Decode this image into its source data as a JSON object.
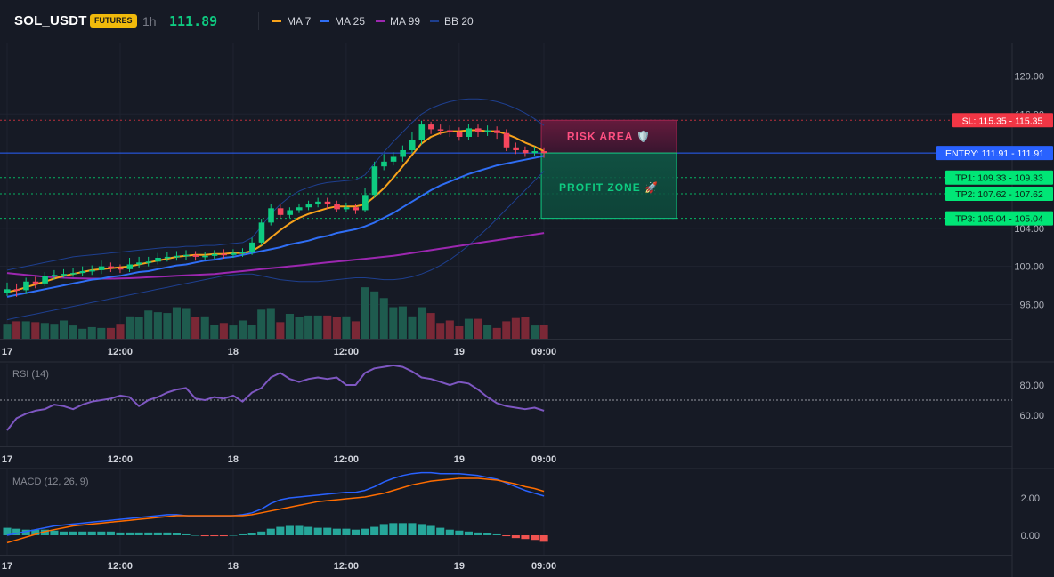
{
  "header": {
    "symbol": "SOL_USDT",
    "badge": "FUTURES",
    "interval": "1h",
    "last_price": "111.89"
  },
  "indicators": [
    {
      "label": "MA 7",
      "color": "#f7a21b"
    },
    {
      "label": "MA 25",
      "color": "#2f6ef5"
    },
    {
      "label": "MA 99",
      "color": "#9c27b0"
    },
    {
      "label": "BB 20",
      "color": "#1e3f8f"
    }
  ],
  "panes": {
    "rsi_label": "RSI (14)",
    "macd_label": "MACD (12, 26, 9)"
  },
  "colors": {
    "up": "#0ecb81",
    "down": "#f6465d",
    "entry": "#2962ff",
    "sl": "#f23645",
    "tp": "#00e676",
    "risk_fill": "#6e1b3f",
    "profit_fill": "#0c4a3b"
  },
  "time_axis": {
    "labels": [
      "17",
      "12:00",
      "18",
      "12:00",
      "19",
      "09:00"
    ],
    "positions_hours": [
      0,
      12,
      24,
      36,
      48,
      57
    ]
  },
  "price_axis": {
    "ticks": [
      "120.00",
      "116.00",
      "104.00",
      "100.00",
      "96.00"
    ],
    "values": [
      120,
      116,
      104,
      100,
      96
    ]
  },
  "rsi_axis": {
    "ticks": [
      "80.00",
      "60.00"
    ],
    "values": [
      80,
      60
    ]
  },
  "macd_axis": {
    "ticks": [
      "2.00",
      "0.00"
    ],
    "values": [
      2,
      0
    ]
  },
  "annotations": {
    "risk_label": "RISK AREA 🛡️",
    "profit_label": "PROFIT ZONE 🚀"
  },
  "price_levels": [
    {
      "key": "sl",
      "label": "SL: 115.35 - 115.35",
      "value": 115.35,
      "color": "#f23645",
      "style": "dotted"
    },
    {
      "key": "entry",
      "label": "ENTRY: 111.91 - 111.91",
      "value": 111.91,
      "color": "#2962ff",
      "style": "solid"
    },
    {
      "key": "tp1",
      "label": "TP1: 109.33 - 109.33",
      "value": 109.33,
      "color": "#00e676",
      "style": "dotted"
    },
    {
      "key": "tp2",
      "label": "TP2: 107.62 - 107.62",
      "value": 107.62,
      "color": "#00e676",
      "style": "dotted"
    },
    {
      "key": "tp3",
      "label": "TP3: 105.04 - 105.04",
      "value": 105.04,
      "color": "#00e676",
      "style": "dotted"
    }
  ],
  "chart_data": {
    "type": "candlestick",
    "x_unit": "hour",
    "ylim": [
      92.4,
      123.5
    ],
    "candles": [
      [
        97.2,
        97.6,
        96.9,
        98.3
      ],
      [
        97.6,
        97.5,
        96.8,
        98.2
      ],
      [
        97.5,
        98.4,
        97.1,
        98.8
      ],
      [
        98.4,
        98.2,
        97.7,
        98.9
      ],
      [
        98.2,
        99.0,
        97.9,
        99.4
      ],
      [
        99.0,
        99.1,
        98.6,
        99.6
      ],
      [
        99.1,
        99.2,
        98.8,
        99.7
      ],
      [
        99.2,
        99.3,
        98.9,
        99.8
      ],
      [
        99.3,
        99.5,
        99.0,
        100.0
      ],
      [
        99.5,
        99.6,
        99.1,
        100.1
      ],
      [
        99.6,
        100.0,
        99.2,
        100.6
      ],
      [
        100.0,
        99.8,
        99.4,
        100.4
      ],
      [
        99.8,
        99.7,
        99.3,
        100.2
      ],
      [
        99.7,
        100.2,
        99.4,
        100.9
      ],
      [
        100.2,
        100.4,
        99.8,
        101.0
      ],
      [
        100.4,
        100.5,
        100.0,
        101.0
      ],
      [
        100.5,
        100.9,
        100.2,
        101.4
      ],
      [
        100.9,
        101.0,
        100.5,
        101.5
      ],
      [
        101.0,
        101.1,
        100.6,
        101.6
      ],
      [
        101.1,
        101.2,
        100.7,
        101.7
      ],
      [
        101.2,
        101.0,
        100.6,
        101.6
      ],
      [
        101.0,
        101.1,
        100.7,
        101.5
      ],
      [
        101.1,
        101.3,
        100.8,
        101.7
      ],
      [
        101.3,
        101.2,
        100.8,
        101.8
      ],
      [
        101.2,
        101.4,
        100.9,
        101.8
      ],
      [
        101.4,
        101.5,
        101.0,
        101.9
      ],
      [
        101.5,
        102.5,
        101.2,
        103.0
      ],
      [
        102.5,
        104.6,
        102.2,
        105.0
      ],
      [
        104.6,
        106.1,
        104.3,
        106.5
      ],
      [
        106.1,
        105.4,
        105.0,
        106.6
      ],
      [
        105.4,
        105.9,
        105.1,
        106.2
      ],
      [
        105.9,
        106.2,
        105.6,
        106.6
      ],
      [
        106.2,
        106.5,
        105.9,
        106.9
      ],
      [
        106.5,
        106.8,
        106.2,
        107.2
      ],
      [
        106.8,
        106.5,
        106.0,
        107.2
      ],
      [
        106.5,
        106.0,
        105.7,
        106.9
      ],
      [
        106.0,
        106.2,
        105.7,
        106.7
      ],
      [
        106.2,
        105.9,
        105.5,
        106.6
      ],
      [
        105.9,
        107.5,
        105.7,
        108.2
      ],
      [
        107.5,
        110.5,
        107.2,
        111.0
      ],
      [
        110.5,
        111.0,
        110.1,
        111.8
      ],
      [
        111.0,
        111.5,
        110.6,
        112.0
      ],
      [
        111.5,
        112.2,
        111.0,
        112.7
      ],
      [
        112.2,
        113.3,
        111.9,
        114.1
      ],
      [
        113.3,
        114.9,
        112.8,
        115.3
      ],
      [
        114.9,
        114.4,
        113.9,
        115.2
      ],
      [
        114.4,
        114.3,
        113.8,
        114.9
      ],
      [
        114.3,
        114.1,
        113.6,
        114.8
      ],
      [
        114.1,
        113.6,
        113.2,
        114.6
      ],
      [
        113.6,
        114.5,
        113.3,
        115.0
      ],
      [
        114.5,
        114.1,
        113.6,
        114.9
      ],
      [
        114.1,
        114.3,
        113.7,
        114.8
      ],
      [
        114.3,
        114.0,
        113.4,
        114.7
      ],
      [
        114.0,
        112.5,
        112.1,
        114.4
      ],
      [
        112.5,
        112.2,
        111.8,
        113.0
      ],
      [
        112.2,
        111.9,
        111.5,
        112.6
      ],
      [
        111.9,
        112.1,
        111.6,
        112.6
      ],
      [
        112.1,
        111.9,
        111.4,
        112.5
      ]
    ],
    "volume": [
      18,
      21,
      21,
      20,
      19,
      18,
      22,
      16,
      12,
      14,
      13,
      13,
      18,
      27,
      26,
      34,
      32,
      31,
      38,
      37,
      26,
      27,
      17,
      19,
      16,
      22,
      17,
      35,
      37,
      20,
      30,
      26,
      28,
      28,
      28,
      26,
      27,
      21,
      62,
      57,
      49,
      38,
      39,
      27,
      38,
      31,
      19,
      22,
      15,
      24,
      24,
      17,
      13,
      21,
      25,
      26,
      16,
      17
    ],
    "ma7": [
      97.3,
      97.5,
      97.8,
      98.1,
      98.4,
      98.7,
      99.0,
      99.2,
      99.4,
      99.6,
      99.7,
      99.8,
      99.9,
      100.0,
      100.2,
      100.4,
      100.6,
      100.8,
      101.0,
      101.1,
      101.2,
      101.2,
      101.3,
      101.3,
      101.4,
      101.4,
      101.6,
      102.2,
      103.0,
      103.8,
      104.5,
      105.1,
      105.5,
      105.8,
      106.1,
      106.3,
      106.3,
      106.3,
      106.5,
      107.3,
      108.2,
      109.3,
      110.5,
      111.7,
      112.9,
      113.6,
      114.0,
      114.2,
      114.2,
      114.3,
      114.3,
      114.2,
      114.2,
      113.9,
      113.5,
      113.0,
      112.6,
      112.1
    ],
    "ma25": [
      96.8,
      97.0,
      97.2,
      97.4,
      97.6,
      97.8,
      98.0,
      98.2,
      98.4,
      98.6,
      98.7,
      98.9,
      99.0,
      99.2,
      99.4,
      99.5,
      99.7,
      99.9,
      100.1,
      100.2,
      100.4,
      100.6,
      100.7,
      100.9,
      101.0,
      101.2,
      101.4,
      101.6,
      101.8,
      102.0,
      102.3,
      102.5,
      102.7,
      103.0,
      103.2,
      103.5,
      103.7,
      103.9,
      104.2,
      104.6,
      105.1,
      105.6,
      106.2,
      106.8,
      107.4,
      108.0,
      108.5,
      108.9,
      109.3,
      109.7,
      110.0,
      110.3,
      110.6,
      110.8,
      111.0,
      111.2,
      111.4,
      111.6
    ],
    "ma99": [
      99.3,
      99.2,
      99.1,
      99.0,
      98.9,
      98.85,
      98.8,
      98.75,
      98.72,
      98.7,
      98.7,
      98.7,
      98.72,
      98.75,
      98.8,
      98.85,
      98.9,
      98.95,
      99.0,
      99.05,
      99.1,
      99.15,
      99.2,
      99.3,
      99.4,
      99.5,
      99.6,
      99.7,
      99.8,
      99.9,
      100.0,
      100.1,
      100.2,
      100.3,
      100.4,
      100.5,
      100.6,
      100.7,
      100.8,
      100.9,
      101.0,
      101.1,
      101.25,
      101.4,
      101.55,
      101.7,
      101.85,
      102.0,
      102.15,
      102.3,
      102.45,
      102.6,
      102.75,
      102.9,
      103.05,
      103.2,
      103.35,
      103.5
    ],
    "bb_upper": [
      99.6,
      99.8,
      100.0,
      100.2,
      100.4,
      100.6,
      100.8,
      101.0,
      101.1,
      101.2,
      101.3,
      101.4,
      101.5,
      101.6,
      101.7,
      101.8,
      101.9,
      102.0,
      102.0,
      102.1,
      102.1,
      102.2,
      102.2,
      102.3,
      102.4,
      102.5,
      103.0,
      104.2,
      105.5,
      106.5,
      107.3,
      107.9,
      108.3,
      108.6,
      108.8,
      108.9,
      109.0,
      109.1,
      109.6,
      110.8,
      112.0,
      113.1,
      114.1,
      115.1,
      116.0,
      116.6,
      117.0,
      117.3,
      117.5,
      117.6,
      117.6,
      117.5,
      117.3,
      117.0,
      116.6,
      116.1,
      115.5,
      114.8
    ],
    "bb_lower": [
      94.4,
      94.6,
      94.8,
      95.0,
      95.2,
      95.4,
      95.6,
      95.8,
      96.0,
      96.2,
      96.4,
      96.6,
      96.8,
      97.0,
      97.2,
      97.4,
      97.6,
      97.8,
      98.0,
      98.2,
      98.4,
      98.6,
      98.8,
      99.0,
      99.1,
      99.2,
      99.2,
      99.0,
      98.8,
      98.6,
      98.5,
      98.4,
      98.4,
      98.4,
      98.5,
      98.6,
      98.7,
      98.8,
      98.8,
      98.7,
      98.6,
      98.6,
      98.7,
      98.9,
      99.2,
      99.6,
      100.1,
      100.7,
      101.4,
      102.2,
      103.1,
      104.0,
      105.0,
      106.0,
      107.0,
      108.0,
      109.0,
      110.0
    ],
    "rsi": [
      50,
      58,
      61,
      63,
      64,
      67,
      66,
      64,
      67,
      69,
      70,
      71,
      73,
      72,
      66,
      70,
      72,
      75,
      77,
      78,
      71,
      70,
      72,
      71,
      73,
      69,
      75,
      78,
      85,
      88,
      84,
      82,
      84,
      85,
      84,
      85,
      80,
      80,
      88,
      91,
      92,
      93,
      92,
      89,
      85,
      84,
      82,
      80,
      82,
      81,
      77,
      72,
      68,
      66,
      65,
      64,
      65,
      63
    ],
    "rsi_ref": 70,
    "macd_line": [
      0.0,
      0.1,
      0.2,
      0.3,
      0.4,
      0.5,
      0.55,
      0.6,
      0.65,
      0.7,
      0.75,
      0.8,
      0.85,
      0.9,
      0.95,
      1.0,
      1.05,
      1.1,
      1.1,
      1.05,
      1.0,
      1.0,
      1.0,
      1.0,
      1.05,
      1.1,
      1.2,
      1.4,
      1.7,
      1.9,
      2.0,
      2.05,
      2.1,
      2.15,
      2.2,
      2.25,
      2.3,
      2.3,
      2.4,
      2.6,
      2.85,
      3.05,
      3.2,
      3.3,
      3.35,
      3.35,
      3.3,
      3.3,
      3.3,
      3.25,
      3.2,
      3.1,
      3.0,
      2.8,
      2.6,
      2.4,
      2.25,
      2.1
    ],
    "macd_signal": [
      -0.4,
      -0.25,
      -0.1,
      0.05,
      0.2,
      0.3,
      0.4,
      0.5,
      0.55,
      0.6,
      0.65,
      0.7,
      0.75,
      0.8,
      0.85,
      0.9,
      0.95,
      1.0,
      1.05,
      1.05,
      1.05,
      1.05,
      1.05,
      1.05,
      1.05,
      1.05,
      1.1,
      1.2,
      1.3,
      1.4,
      1.5,
      1.6,
      1.7,
      1.8,
      1.85,
      1.9,
      1.95,
      2.0,
      2.05,
      2.15,
      2.25,
      2.4,
      2.55,
      2.7,
      2.8,
      2.9,
      2.95,
      3.0,
      3.05,
      3.05,
      3.05,
      3.0,
      2.95,
      2.85,
      2.75,
      2.6,
      2.5,
      2.35
    ],
    "macd_hist": [
      0.4,
      0.35,
      0.3,
      0.3,
      0.3,
      0.25,
      0.2,
      0.2,
      0.2,
      0.2,
      0.2,
      0.2,
      0.15,
      0.15,
      0.15,
      0.15,
      0.15,
      0.15,
      0.1,
      0.05,
      0.0,
      -0.05,
      -0.05,
      -0.05,
      0.0,
      0.05,
      0.1,
      0.2,
      0.35,
      0.45,
      0.5,
      0.5,
      0.45,
      0.4,
      0.4,
      0.35,
      0.35,
      0.3,
      0.35,
      0.45,
      0.6,
      0.65,
      0.65,
      0.65,
      0.6,
      0.5,
      0.4,
      0.3,
      0.25,
      0.2,
      0.15,
      0.1,
      0.05,
      -0.05,
      -0.15,
      -0.2,
      -0.25,
      -0.35
    ]
  }
}
